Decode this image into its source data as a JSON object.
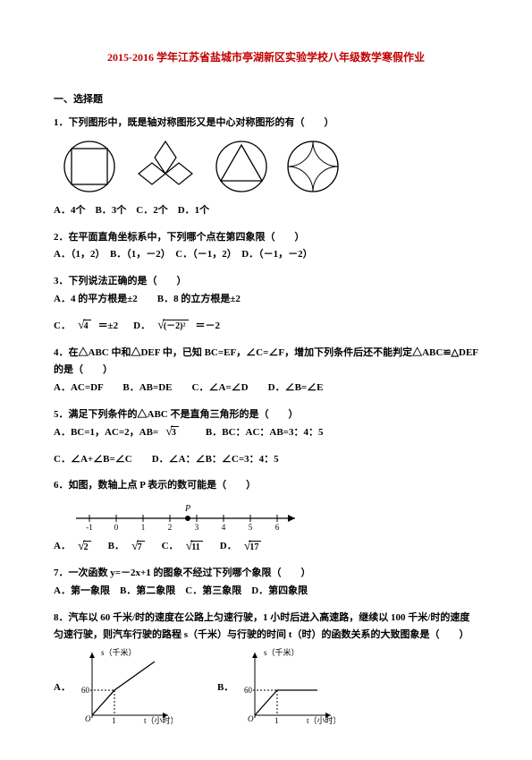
{
  "title": "2015-2016 学年江苏省盐城市亭湖新区实验学校八年级数学寒假作业",
  "section1": "一、选择题",
  "q1": {
    "text": "1．下列图形中，既是轴对称图形又是中心对称图形的有（　　）",
    "options": "A．4个　B．3个　C．2个　D．1个"
  },
  "q2": {
    "text": "2．在平面直角坐标系中，下列哪个点在第四象限（　　）",
    "options": "A．（1，2）　B．（1，－2）　C．（－1，2）　D．（－1，－2）"
  },
  "q3": {
    "text": "3．下列说法正确的是（　　）",
    "optA": "A．4 的平方根是±2　　B．8 的立方根是±2",
    "optC_prefix": "C．",
    "optC_eq1a": "4",
    "optC_eq1b": "＝±2",
    "optC_mid": "　D．",
    "optC_eq2a": "(－2)²",
    "optC_eq2b": "＝－2"
  },
  "q4": {
    "text": "4．在△ABC 中和△DEF 中，已知 BC=EF，∠C=∠F，增加下列条件后还不能判定△ABC≌△DEF 的是（　　）",
    "options": "A．AC=DF　　B．AB=DE　　C．∠A=∠D　　D．∠B=∠E"
  },
  "q5": {
    "text": "5．满足下列条件的△ABC 不是直角三角形的是（　　）",
    "optA_prefix": "A．BC=1，AC=2，AB=",
    "optA_rad": "3",
    "optA_mid": "　　B．BC：AC：AB=3：4：5",
    "optB": "C．∠A+∠B=∠C　　D．∠A：∠B：∠C=3：4：5"
  },
  "q6": {
    "text": "6．如图，数轴上点 P 表示的数可能是（　　）",
    "optA": "A．",
    "radA": "2",
    "optB": "　B．",
    "radB": "7",
    "optC": "　C．",
    "radC": "11",
    "optD": "　D．",
    "radD": "17"
  },
  "q7": {
    "text": "7．一次函数 y=－2x+1 的图象不经过下列哪个象限（　　）",
    "options": "A．第一象限　B．第二象限　C．第三象限　D．第四象限"
  },
  "q8": {
    "text": "8．汽车以 60 千米/时的速度在公路上匀速行驶，1 小时后进入高速路，继续以 100 千米/时的速度匀速行驶，则汽车行驶的路程 s（千米）与行驶的时间 t（时）的函数关系的大致图象是（　　）",
    "labelA": "A．",
    "labelB": "B．",
    "axis_y": "s（千米）",
    "axis_x": "t（小时）",
    "tick60": "60",
    "tick1": "1"
  },
  "numberline": {
    "ticks": [
      "-1",
      "0",
      "1",
      "2",
      "3",
      "4",
      "5",
      "6"
    ],
    "point_label": "P"
  }
}
